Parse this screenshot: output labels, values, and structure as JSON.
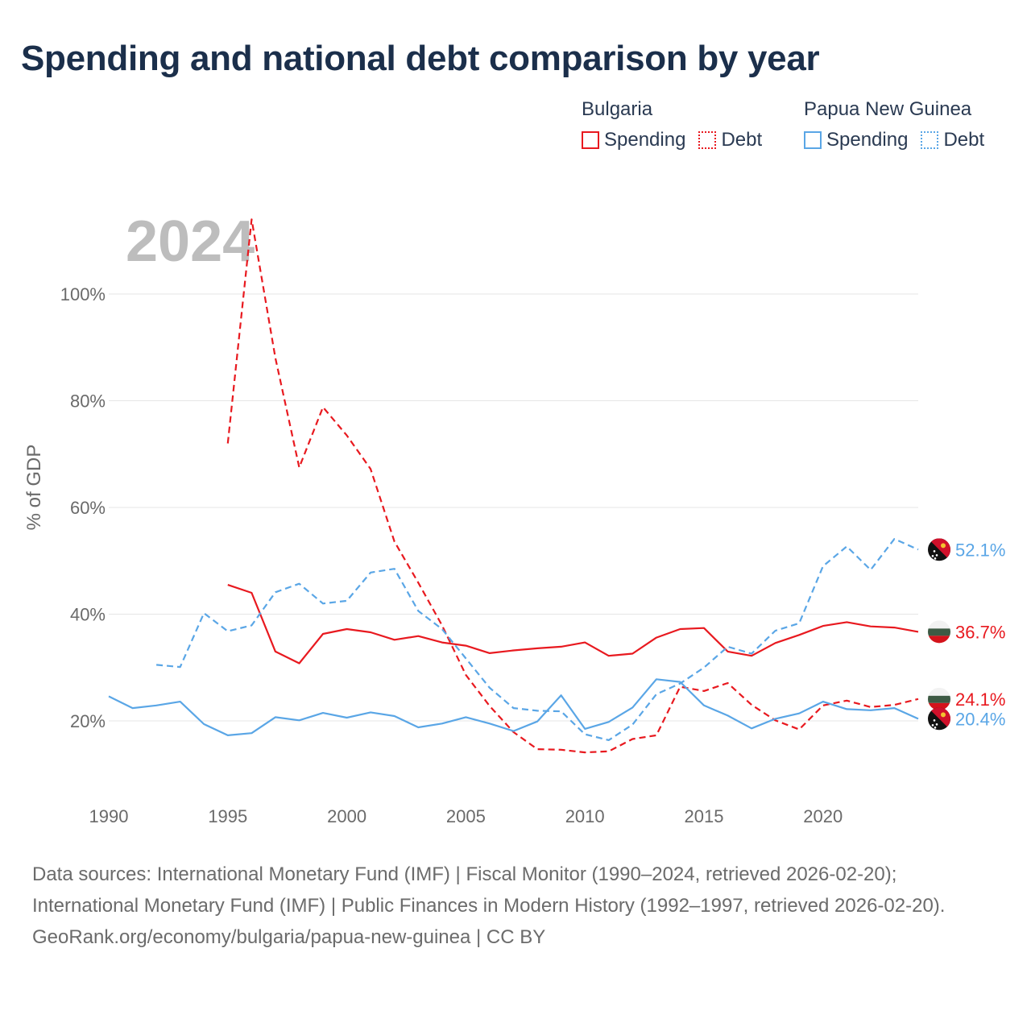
{
  "title": "Spending and national debt comparison by year",
  "legend": {
    "groups": [
      {
        "name": "Bulgaria",
        "items": [
          {
            "label": "Spending",
            "style": "solid",
            "color": "#e8191f"
          },
          {
            "label": "Debt",
            "style": "dotted",
            "color": "#e8191f"
          }
        ]
      },
      {
        "name": "Papua New Guinea",
        "items": [
          {
            "label": "Spending",
            "style": "solid",
            "color": "#5aa6e6"
          },
          {
            "label": "Debt",
            "style": "dotted",
            "color": "#5aa6e6"
          }
        ]
      }
    ]
  },
  "colors": {
    "bulgaria": "#e8191f",
    "png": "#5aa6e6",
    "grid": "#e6e6e6",
    "axis_text": "#6a6a6a",
    "year_watermark": "#bdbdbd"
  },
  "chart_data": {
    "type": "line",
    "title": "Spending and national debt comparison by year",
    "year_label": "2024",
    "xlabel": "",
    "ylabel": "% of GDP",
    "xlim": [
      1990,
      2024
    ],
    "ylim": [
      8,
      120
    ],
    "x_ticks": [
      1990,
      1995,
      2000,
      2005,
      2010,
      2015,
      2020
    ],
    "y_ticks": [
      20,
      40,
      60,
      80,
      100
    ],
    "y_tick_labels": [
      "20%",
      "40%",
      "60%",
      "80%",
      "100%"
    ],
    "series": [
      {
        "name": "Bulgaria Spending",
        "country": "Bulgaria",
        "metric": "Spending",
        "color": "#e8191f",
        "dash": false,
        "end_label": "36.7%",
        "x": [
          1995,
          1996,
          1997,
          1998,
          1999,
          2000,
          2001,
          2002,
          2003,
          2004,
          2005,
          2006,
          2007,
          2008,
          2009,
          2010,
          2011,
          2012,
          2013,
          2014,
          2015,
          2016,
          2017,
          2018,
          2019,
          2020,
          2021,
          2022,
          2023,
          2024
        ],
        "values": [
          45.5,
          44.0,
          33.0,
          30.8,
          36.3,
          37.2,
          36.6,
          35.2,
          35.9,
          34.7,
          34.1,
          32.7,
          33.2,
          33.6,
          33.9,
          34.7,
          32.2,
          32.6,
          35.6,
          37.2,
          37.4,
          33.0,
          32.2,
          34.6,
          36.1,
          37.8,
          38.5,
          37.7,
          37.5,
          36.7
        ]
      },
      {
        "name": "Bulgaria Debt",
        "country": "Bulgaria",
        "metric": "Debt",
        "color": "#e8191f",
        "dash": true,
        "end_label": "24.1%",
        "x": [
          1995,
          1996,
          1997,
          1998,
          1999,
          2000,
          2001,
          2002,
          2003,
          2004,
          2005,
          2006,
          2007,
          2008,
          2009,
          2010,
          2011,
          2012,
          2013,
          2014,
          2015,
          2016,
          2017,
          2018,
          2019,
          2020,
          2021,
          2022,
          2023,
          2024
        ],
        "values": [
          72.0,
          114.0,
          88.0,
          67.5,
          78.8,
          73.5,
          67.2,
          53.6,
          45.9,
          37.9,
          28.6,
          22.8,
          17.9,
          14.7,
          14.6,
          14.1,
          14.3,
          16.6,
          17.3,
          26.4,
          25.6,
          27.1,
          23.0,
          20.1,
          18.4,
          22.9,
          23.8,
          22.6,
          23.0,
          24.1
        ]
      },
      {
        "name": "Papua New Guinea Spending",
        "country": "Papua New Guinea",
        "metric": "Spending",
        "color": "#5aa6e6",
        "dash": false,
        "end_label": "20.4%",
        "x": [
          1990,
          1991,
          1992,
          1993,
          1994,
          1995,
          1996,
          1997,
          1998,
          1999,
          2000,
          2001,
          2002,
          2003,
          2004,
          2005,
          2006,
          2007,
          2008,
          2009,
          2010,
          2011,
          2012,
          2013,
          2014,
          2015,
          2016,
          2017,
          2018,
          2019,
          2020,
          2021,
          2022,
          2023,
          2024
        ],
        "values": [
          24.6,
          22.4,
          22.9,
          23.6,
          19.4,
          17.3,
          17.7,
          20.7,
          20.1,
          21.5,
          20.6,
          21.6,
          20.9,
          18.8,
          19.5,
          20.7,
          19.5,
          18.1,
          19.9,
          24.8,
          18.5,
          19.8,
          22.5,
          27.8,
          27.3,
          22.9,
          21.0,
          18.6,
          20.4,
          21.4,
          23.6,
          22.2,
          22.0,
          22.4,
          20.4
        ]
      },
      {
        "name": "Papua New Guinea Debt",
        "country": "Papua New Guinea",
        "metric": "Debt",
        "color": "#5aa6e6",
        "dash": true,
        "end_label": "52.1%",
        "x": [
          1992,
          1993,
          1994,
          1995,
          1996,
          1997,
          1998,
          1999,
          2000,
          2001,
          2002,
          2003,
          2004,
          2005,
          2006,
          2007,
          2008,
          2009,
          2010,
          2011,
          2012,
          2013,
          2014,
          2015,
          2016,
          2017,
          2018,
          2019,
          2020,
          2021,
          2022,
          2023,
          2024
        ],
        "values": [
          30.5,
          30.1,
          40.2,
          36.8,
          37.9,
          44.1,
          45.7,
          42.0,
          42.5,
          47.8,
          48.5,
          40.6,
          37.2,
          31.7,
          26.2,
          22.4,
          21.9,
          21.8,
          17.5,
          16.4,
          19.3,
          25.0,
          27.0,
          30.0,
          33.9,
          32.6,
          36.9,
          38.3,
          49.0,
          52.7,
          48.3,
          54.1,
          52.1
        ]
      }
    ]
  },
  "footer": {
    "sources": "Data sources: International Monetary Fund (IMF) | Fiscal Monitor (1990–2024, retrieved 2026-02-20); International Monetary Fund (IMF) | Public Finances in Modern History (1992–1997, retrieved 2026-02-20).",
    "credit": "GeoRank.org/economy/bulgaria/papua-new-guinea | CC BY"
  }
}
